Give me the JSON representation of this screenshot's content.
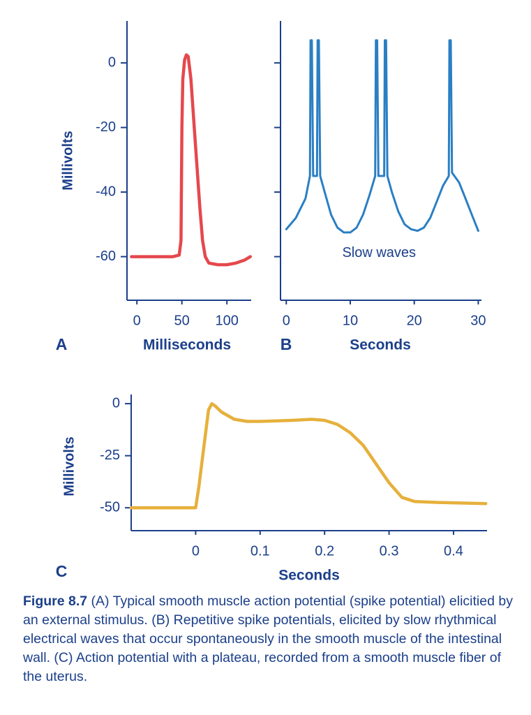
{
  "chart_data": [
    {
      "type": "line",
      "panel_label": "A",
      "xlabel": "Milliseconds",
      "ylabel": "Millivolts",
      "color": "#e5484d",
      "x": [
        -6,
        20,
        40,
        47,
        49,
        50,
        51,
        53,
        55,
        57,
        60,
        65,
        70,
        73,
        76,
        80,
        90,
        100,
        110,
        120,
        126
      ],
      "values": [
        -60,
        -60,
        -60,
        -59.5,
        -55,
        -20,
        -5,
        1,
        2.5,
        2,
        -5,
        -25,
        -45,
        -55,
        -60,
        -62,
        -62.5,
        -62.5,
        -62,
        -61,
        -60
      ],
      "xlim": [
        -11,
        127
      ],
      "ylim": [
        -73.5,
        13
      ],
      "xticks": [
        0,
        50,
        100
      ],
      "yticks": [
        0,
        -20,
        -40,
        -60
      ],
      "ytick_labels": true
    },
    {
      "type": "line",
      "panel_label": "B",
      "xlabel": "Seconds",
      "color": "#2a7fc4",
      "x": [
        0,
        1.5,
        3,
        3.7,
        3.8,
        4.0,
        4.2,
        4.8,
        4.9,
        5.1,
        5.3,
        6,
        7,
        8,
        9,
        10,
        11,
        12,
        13,
        13.9,
        14.0,
        14.2,
        14.4,
        15.3,
        15.4,
        15.6,
        15.8,
        16.5,
        17.5,
        18.5,
        19.5,
        20.5,
        21.5,
        22.5,
        23.5,
        24.5,
        25.4,
        25.5,
        25.7,
        25.9,
        27,
        28,
        29,
        30
      ],
      "values": [
        -51.5,
        -48,
        -42,
        -35,
        7,
        7,
        -35,
        -35,
        7,
        7,
        -35,
        -40,
        -47,
        -51,
        -52.5,
        -52.5,
        -51,
        -47,
        -41,
        -35,
        7,
        7,
        -35,
        -35,
        7,
        7,
        -35,
        -40,
        -46,
        -50,
        -51.5,
        -52,
        -51,
        -48,
        -43,
        -38,
        -35,
        7,
        7,
        -34,
        -37,
        -42,
        -47,
        -52
      ],
      "annotation": {
        "text": "Slow waves",
        "x": 14.5,
        "y": -59
      },
      "xlim": [
        -0.9,
        30.5
      ],
      "ylim": [
        -73.5,
        13
      ],
      "xticks": [
        0,
        10,
        20,
        30
      ],
      "yticks": [
        0,
        -20,
        -40,
        -60
      ],
      "ytick_labels": false
    },
    {
      "type": "line",
      "panel_label": "C",
      "xlabel": "Seconds",
      "ylabel": "Millivolts",
      "color": "#e6b03c",
      "x": [
        -0.1,
        0,
        0.005,
        0.015,
        0.02,
        0.025,
        0.03,
        0.04,
        0.06,
        0.08,
        0.1,
        0.15,
        0.18,
        0.2,
        0.22,
        0.24,
        0.26,
        0.28,
        0.3,
        0.32,
        0.34,
        0.38,
        0.45
      ],
      "values": [
        -50,
        -50,
        -40,
        -15,
        -3,
        0,
        -1,
        -4,
        -7.5,
        -8.5,
        -8.5,
        -8,
        -7.5,
        -8,
        -10,
        -14,
        -20,
        -29,
        -38,
        -45,
        -47,
        -47.5,
        -48
      ],
      "xlim": [
        -0.1,
        0.452
      ],
      "ylim": [
        -61,
        4.4
      ],
      "xticks": [
        0,
        0.1,
        0.2,
        0.3,
        0.4
      ],
      "yticks": [
        0,
        -25,
        -50
      ],
      "ytick_labels": true
    }
  ],
  "caption": {
    "label": "Figure 8.7",
    "text": "(A) Typical smooth muscle action potential (spike potential) elicitied by an external stimulus. (B) Repetitive spike potentials, elicited by slow rhythmical electrical waves that occur spontaneously in the smooth muscle of the intestinal wall. (C) Action potential with a plateau, recorded from a smooth muscle fiber of the uterus."
  }
}
